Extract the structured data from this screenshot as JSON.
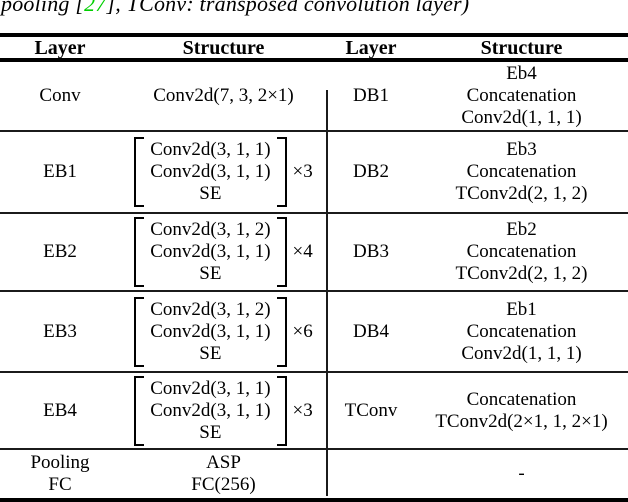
{
  "caption": {
    "prefix": "pooling [",
    "citation": "27",
    "suffix": "], TConv: transposed convolution layer)"
  },
  "colors": {
    "citation_green": "#00D000"
  },
  "table": {
    "headers": [
      "Layer",
      "Structure",
      "Layer",
      "Structure"
    ],
    "rows": [
      {
        "left": {
          "layer": "Conv",
          "structure_lines": [
            "Conv2d(7, 3, 2×1)"
          ]
        },
        "right": {
          "layer": "DB1",
          "structure_lines": [
            "Eb4",
            "Concatenation",
            "Conv2d(1, 1, 1)"
          ]
        }
      },
      {
        "left": {
          "layer": "EB1",
          "block_lines": [
            "Conv2d(3, 1, 1)",
            "Conv2d(3, 1, 1)",
            "SE"
          ],
          "multiplier": "×3"
        },
        "right": {
          "layer": "DB2",
          "structure_lines": [
            "Eb3",
            "Concatenation",
            "TConv2d(2, 1, 2)"
          ]
        }
      },
      {
        "left": {
          "layer": "EB2",
          "block_lines": [
            "Conv2d(3, 1, 2)",
            "Conv2d(3, 1, 1)",
            "SE"
          ],
          "multiplier": "×4"
        },
        "right": {
          "layer": "DB3",
          "structure_lines": [
            "Eb2",
            "Concatenation",
            "TConv2d(2, 1, 2)"
          ]
        }
      },
      {
        "left": {
          "layer": "EB3",
          "block_lines": [
            "Conv2d(3, 1, 2)",
            "Conv2d(3, 1, 1)",
            "SE"
          ],
          "multiplier": "×6"
        },
        "right": {
          "layer": "DB4",
          "structure_lines": [
            "Eb1",
            "Concatenation",
            "Conv2d(1, 1, 1)"
          ]
        }
      },
      {
        "left": {
          "layer": "EB4",
          "block_lines": [
            "Conv2d(3, 1, 1)",
            "Conv2d(3, 1, 1)",
            "SE"
          ],
          "multiplier": "×3"
        },
        "right": {
          "layer": "TConv",
          "structure_lines": [
            "Concatenation",
            "TConv2d(2×1, 1, 2×1)"
          ]
        }
      },
      {
        "left": {
          "layer_lines": [
            "Pooling",
            "FC"
          ],
          "structure_lines": [
            "ASP",
            "FC(256)"
          ]
        },
        "right": {
          "layer": "",
          "structure_lines": [
            "-"
          ]
        }
      }
    ]
  }
}
